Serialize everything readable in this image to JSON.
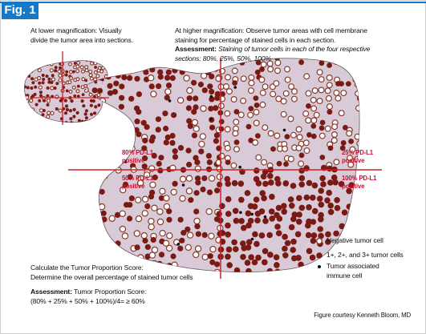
{
  "header": {
    "figure_label": "Fig. 1"
  },
  "lower_magnification": {
    "lines": [
      "At lower magnification: Visually",
      "divide the tumor area into sections."
    ]
  },
  "higher_magnification": {
    "lines": [
      "At higher magnification: Observe tumor areas with cell membrane",
      "staining for percentage of stained cells in each section."
    ],
    "assessment_label": "Assessment:",
    "assessment_lines": [
      "Staining of tumor cells in each of the four respective",
      "sections: 80%, 25%, 50%, 100%"
    ]
  },
  "sections": [
    {
      "label_lines": [
        "80% PD-L1",
        "positive"
      ]
    },
    {
      "label_lines": [
        "25% PD-L1",
        "positive"
      ]
    },
    {
      "label_lines": [
        "50% PD-L1",
        "positive"
      ]
    },
    {
      "label_lines": [
        "100% PD-L1",
        "positive"
      ]
    }
  ],
  "legend": [
    {
      "label_lines": [
        "Negative tumor cell"
      ]
    },
    {
      "label_lines": [
        "1+, 2+, and 3+ tumor cells"
      ]
    },
    {
      "label_lines": [
        "Tumor associated",
        "immune cell"
      ]
    }
  ],
  "calculation": {
    "lines": [
      "Calculate the Tumor Proportion Score:",
      "Determine the overall percentage of stained tumor cells"
    ],
    "assessment_label": "Assessment:",
    "assessment_text": "Tumor Proportion Score:",
    "formula": "(80% + 25% + 50% + 100%)/4= ≥ 60%"
  },
  "credit": "Figure courtesy Kenneth Bloom, MD"
}
